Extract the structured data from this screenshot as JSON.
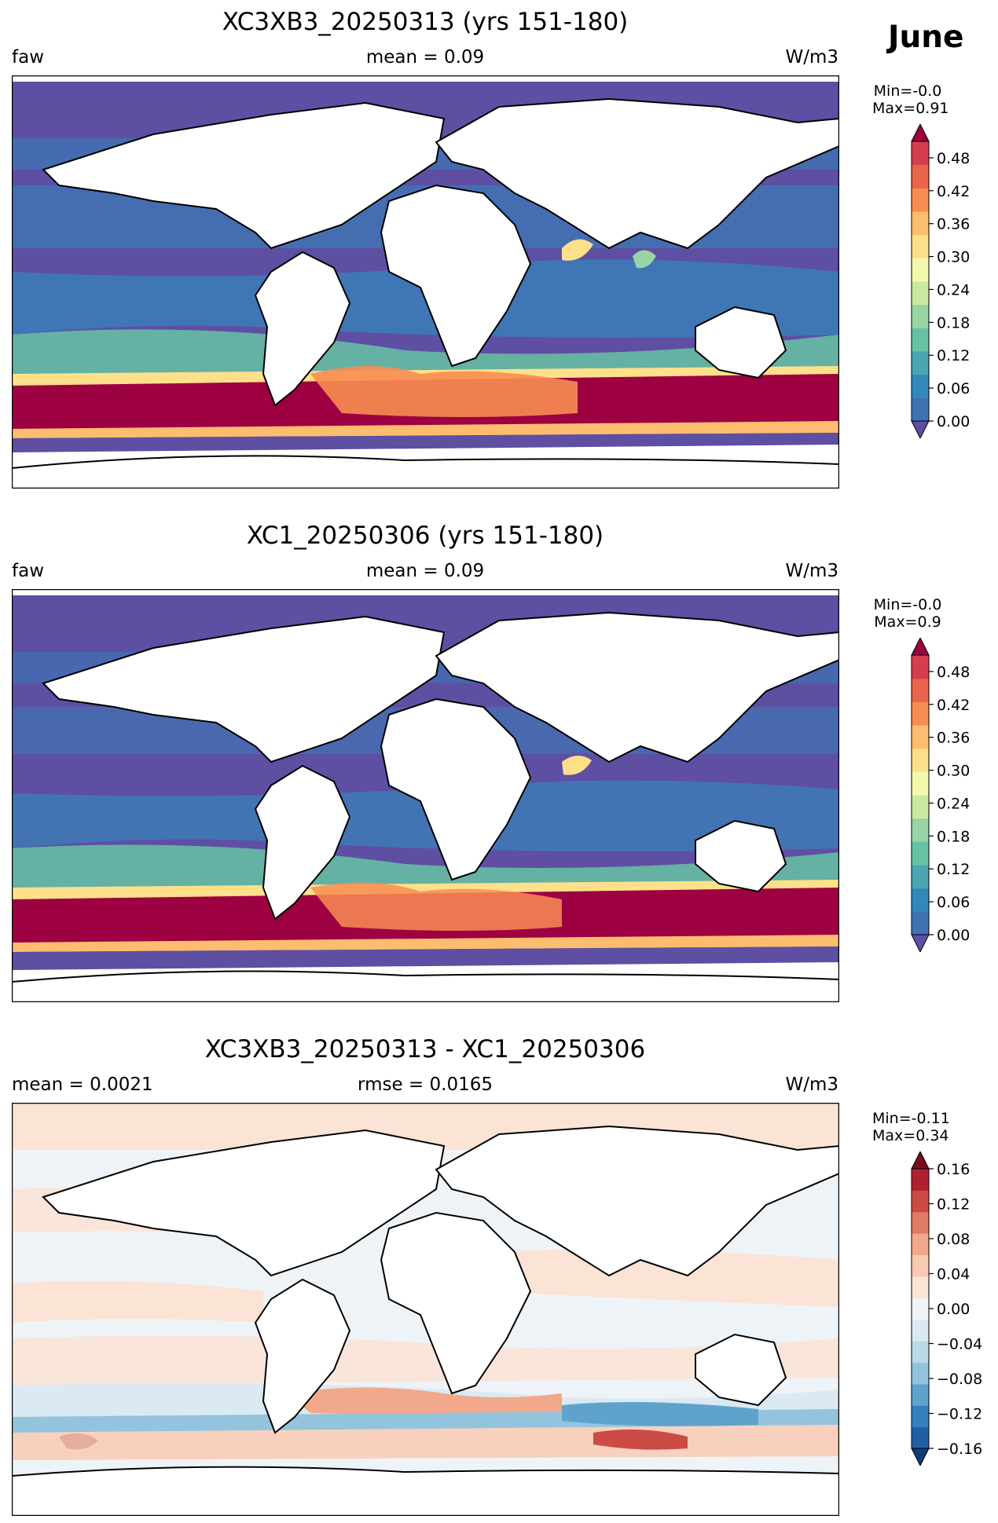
{
  "month_label": "June",
  "panels": [
    {
      "title": "XC3XB3_20250313 (yrs 151-180)",
      "left_label": "faw",
      "center_label": "mean = 0.09",
      "right_label": "W/m3",
      "min_label": "Min=-0.0",
      "max_label": "Max=0.91"
    },
    {
      "title": "XC1_20250306 (yrs 151-180)",
      "left_label": "faw",
      "center_label": "mean = 0.09",
      "right_label": "W/m3",
      "min_label": "Min=-0.0",
      "max_label": "Max=0.9"
    },
    {
      "title": "XC3XB3_20250313 - XC1_20250306",
      "left_label": "mean = 0.0021",
      "center_label": "rmse = 0.0165",
      "right_label": "W/m3",
      "min_label": "Min=-0.11",
      "max_label": "Max=0.34"
    }
  ],
  "chart_data": [
    {
      "type": "heatmap",
      "title": "XC3XB3_20250313 (yrs 151-180)",
      "variable": "faw",
      "units": "W/m3",
      "mean": 0.09,
      "min": -0.0,
      "max": 0.91,
      "colormap": "Spectral_r",
      "colorbar": {
        "ticks": [
          0.0,
          0.06,
          0.12,
          0.18,
          0.24,
          0.3,
          0.36,
          0.42,
          0.48
        ],
        "tick_labels": [
          "0.00",
          "0.06",
          "0.12",
          "0.18",
          "0.24",
          "0.30",
          "0.36",
          "0.42",
          "0.48"
        ],
        "range": [
          0.0,
          0.51
        ],
        "extend": "both",
        "colors": [
          "#5e4fa2",
          "#3f72b4",
          "#3288bd",
          "#4aa6b1",
          "#66c2a5",
          "#99d5a4",
          "#cbe99f",
          "#f4faad",
          "#fee08b",
          "#fdbd6f",
          "#f88d52",
          "#e9644a",
          "#d53e4f",
          "#9e0142"
        ]
      }
    },
    {
      "type": "heatmap",
      "title": "XC1_20250306 (yrs 151-180)",
      "variable": "faw",
      "units": "W/m3",
      "mean": 0.09,
      "min": -0.0,
      "max": 0.9,
      "colormap": "Spectral_r",
      "colorbar": {
        "ticks": [
          0.0,
          0.06,
          0.12,
          0.18,
          0.24,
          0.3,
          0.36,
          0.42,
          0.48
        ],
        "tick_labels": [
          "0.00",
          "0.06",
          "0.12",
          "0.18",
          "0.24",
          "0.30",
          "0.36",
          "0.42",
          "0.48"
        ],
        "range": [
          0.0,
          0.51
        ],
        "extend": "both",
        "colors": [
          "#5e4fa2",
          "#3f72b4",
          "#3288bd",
          "#4aa6b1",
          "#66c2a5",
          "#99d5a4",
          "#cbe99f",
          "#f4faad",
          "#fee08b",
          "#fdbd6f",
          "#f88d52",
          "#e9644a",
          "#d53e4f",
          "#9e0142"
        ]
      }
    },
    {
      "type": "heatmap",
      "title": "XC3XB3_20250313 - XC1_20250306",
      "units": "W/m3",
      "mean": 0.0021,
      "rmse": 0.0165,
      "min": -0.11,
      "max": 0.34,
      "colormap": "RdBu_r",
      "colorbar": {
        "ticks": [
          -0.16,
          -0.12,
          -0.08,
          -0.04,
          0.0,
          0.04,
          0.08,
          0.12,
          0.16
        ],
        "tick_labels": [
          "−0.16",
          "−0.12",
          "−0.08",
          "−0.04",
          "0.00",
          "0.04",
          "0.08",
          "0.12",
          "0.16"
        ],
        "range": [
          -0.16,
          0.16
        ],
        "extend": "both",
        "colors": [
          "#0b3e78",
          "#1f5fa5",
          "#3581bd",
          "#5fa3cd",
          "#93c4de",
          "#bcd9ea",
          "#dbe9f2",
          "#eef3f7",
          "#fbe3d6",
          "#f8cab3",
          "#f2a88a",
          "#e27a63",
          "#cc4b45",
          "#b0202f",
          "#7a0c20"
        ]
      }
    }
  ]
}
